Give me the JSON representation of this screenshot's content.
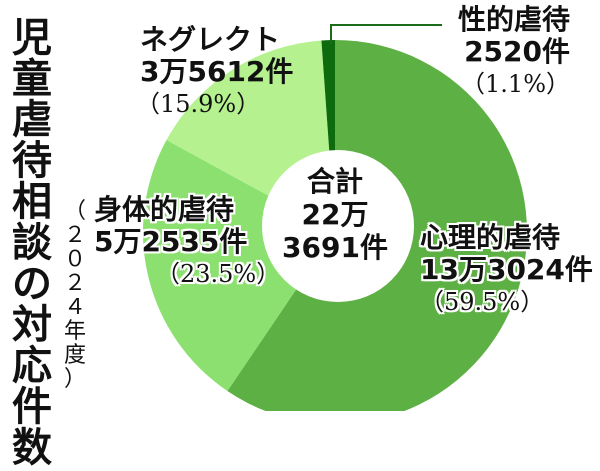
{
  "title": "児童虐待相談の対応件数",
  "title_chars": [
    "児",
    "童",
    "虐",
    "待",
    "相",
    "談",
    "の",
    "対",
    "応",
    "件",
    "数"
  ],
  "subtitle": "（2024年度）",
  "subtitle_chars": [
    "（",
    "２",
    "０",
    "２",
    "４",
    "年",
    "度",
    "）"
  ],
  "center": {
    "line1": "合計",
    "line2": "22万",
    "line3": "3691件"
  },
  "labels": {
    "psych": {
      "name": "心理的虐待",
      "count": "13万3024件",
      "pct": "（59.5%）"
    },
    "physical": {
      "name": "身体的虐待",
      "count": "5万2535件",
      "pct": "（23.5%）"
    },
    "neglect": {
      "name": "ネグレクト",
      "count": "3万5612件",
      "pct": "（15.9%）"
    },
    "sexual": {
      "name": "性的虐待",
      "count": "2520件",
      "pct": "（1.1%）"
    }
  },
  "chart_data": {
    "type": "pie",
    "title": "児童虐待相談の対応件数（2024年度）",
    "donut": true,
    "total_label": "合計 22万3691件",
    "total": 223691,
    "categories": [
      "心理的虐待",
      "身体的虐待",
      "ネグレクト",
      "性的虐待"
    ],
    "values": [
      133024,
      52535,
      35612,
      2520
    ],
    "percentages": [
      59.5,
      23.5,
      15.9,
      1.1
    ],
    "colors": [
      "#5db043",
      "#8ce070",
      "#b5f28f",
      "#0d6b0d"
    ],
    "start_angle": "12 o'clock, clockwise",
    "legend": "direct labels"
  }
}
